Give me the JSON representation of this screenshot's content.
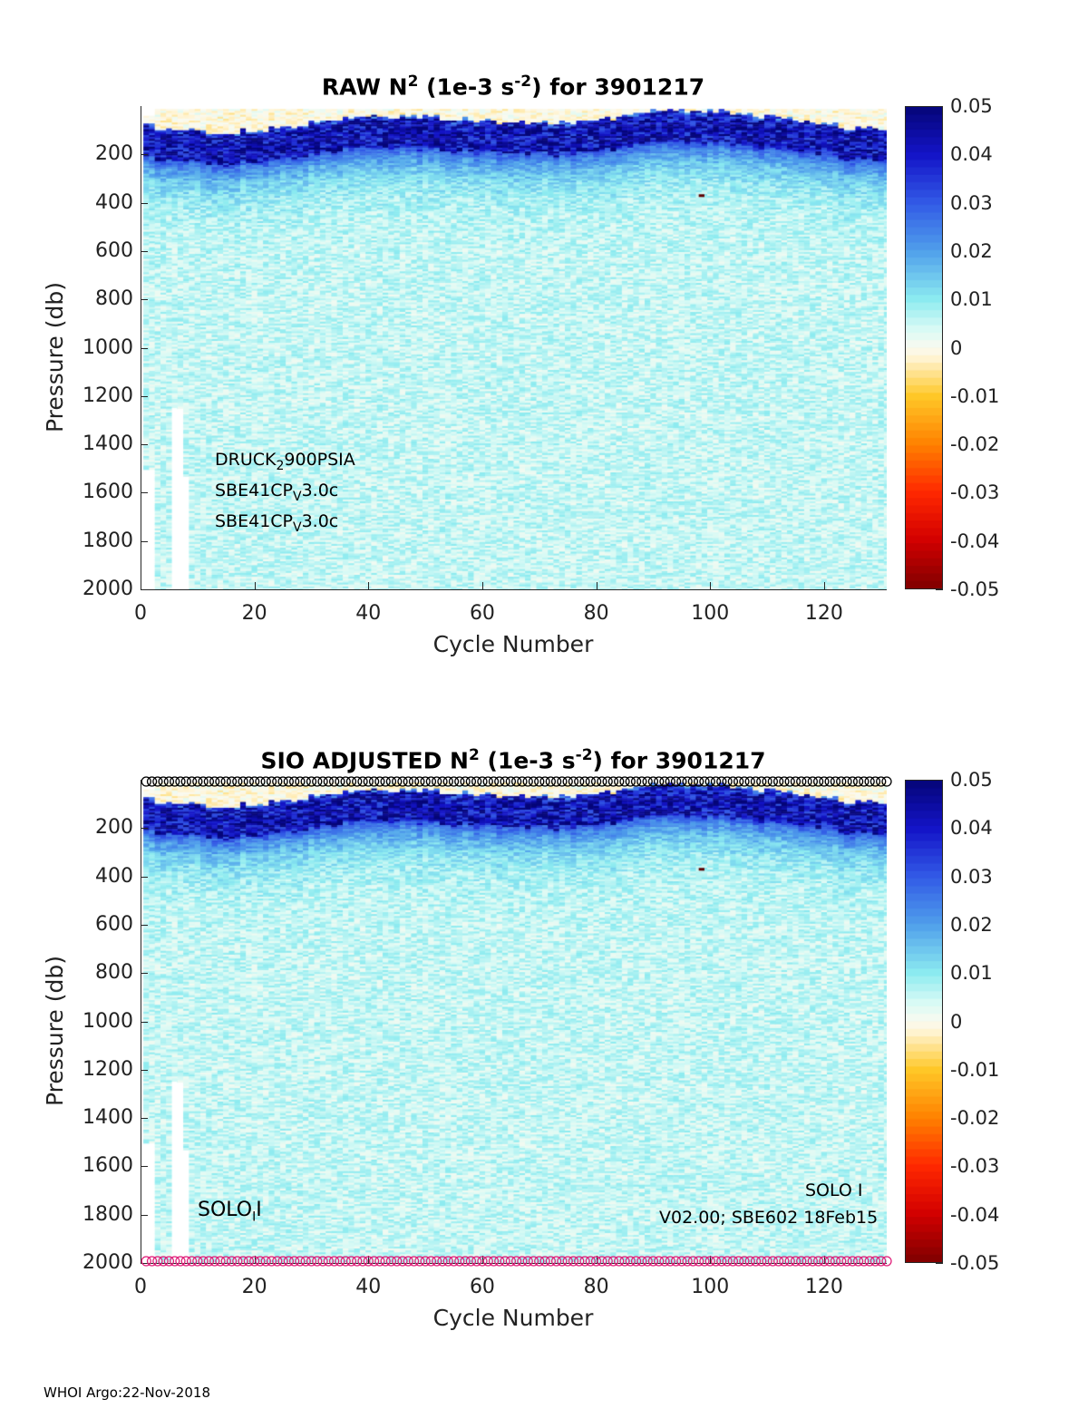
{
  "chart_data": [
    {
      "type": "heatmap",
      "title": {
        "prefix": "RAW N",
        "sup1": "2",
        "mid": " (1e-3 s",
        "sup2": "-2",
        "suffix": ") for 3901217"
      },
      "xlabel": "Cycle Number",
      "ylabel": "Pressure (db)",
      "xlim": [
        0,
        131
      ],
      "ylim": [
        0,
        2000
      ],
      "y_reversed": true,
      "xticks": [
        "0",
        "20",
        "40",
        "60",
        "80",
        "100",
        "120"
      ],
      "yticks": [
        "200",
        "400",
        "600",
        "800",
        "1000",
        "1200",
        "1400",
        "1600",
        "1800",
        "2000"
      ],
      "colorbar": {
        "range": [
          -0.05,
          0.05
        ],
        "ticks": [
          "0.05",
          "0.04",
          "0.03",
          "0.02",
          "0.01",
          "0",
          "-0.01",
          "-0.02",
          "-0.03",
          "-0.04",
          "-0.05"
        ]
      },
      "structure": {
        "surface_layer_db": [
          20,
          110
        ],
        "strong_stratification_db": [
          80,
          280
        ],
        "peak_value": 0.05,
        "deep_value": 0.005,
        "n_cycles": 131
      },
      "annotations": {
        "line1_main": "DRUCK",
        "line1_sub": "2",
        "line1_rest": "900PSIA",
        "line2_main": "SBE41CP",
        "line2_sub": "V",
        "line2_rest": "3.0c",
        "line3_main": "SBE41CP",
        "line3_sub": "V",
        "line3_rest": "3.0c"
      }
    },
    {
      "type": "heatmap",
      "title": {
        "prefix": "SIO  ADJUSTED N",
        "sup1": "2",
        "mid": " (1e-3 s",
        "sup2": "-2",
        "suffix": ") for 3901217"
      },
      "xlabel": "Cycle Number",
      "ylabel": "Pressure (db)",
      "xlim": [
        0,
        131
      ],
      "ylim": [
        0,
        2000
      ],
      "y_reversed": true,
      "xticks": [
        "0",
        "20",
        "40",
        "60",
        "80",
        "100",
        "120"
      ],
      "yticks": [
        "200",
        "400",
        "600",
        "800",
        "1000",
        "1200",
        "1400",
        "1600",
        "1800",
        "2000"
      ],
      "colorbar": {
        "range": [
          -0.05,
          0.05
        ],
        "ticks": [
          "0.05",
          "0.04",
          "0.03",
          "0.02",
          "0.01",
          "0",
          "-0.01",
          "-0.02",
          "-0.03",
          "-0.04",
          "-0.05"
        ]
      },
      "structure": {
        "surface_layer_db": [
          20,
          110
        ],
        "strong_stratification_db": [
          80,
          280
        ],
        "peak_value": 0.05,
        "deep_value": 0.005,
        "n_cycles": 131
      },
      "markers": {
        "top_circles_color": "#000000",
        "bottom_circles_color": "#e0207a",
        "pressure_top": 0,
        "pressure_bottom": 2000
      },
      "annotations": {
        "solo_main": "SOLO",
        "solo_sub": "I",
        "solo_rest": "I",
        "version": "V02.00; SBE602 18Feb15",
        "solo_right": "SOLO I"
      }
    }
  ],
  "footer": "WHOI Argo:22-Nov-2018"
}
